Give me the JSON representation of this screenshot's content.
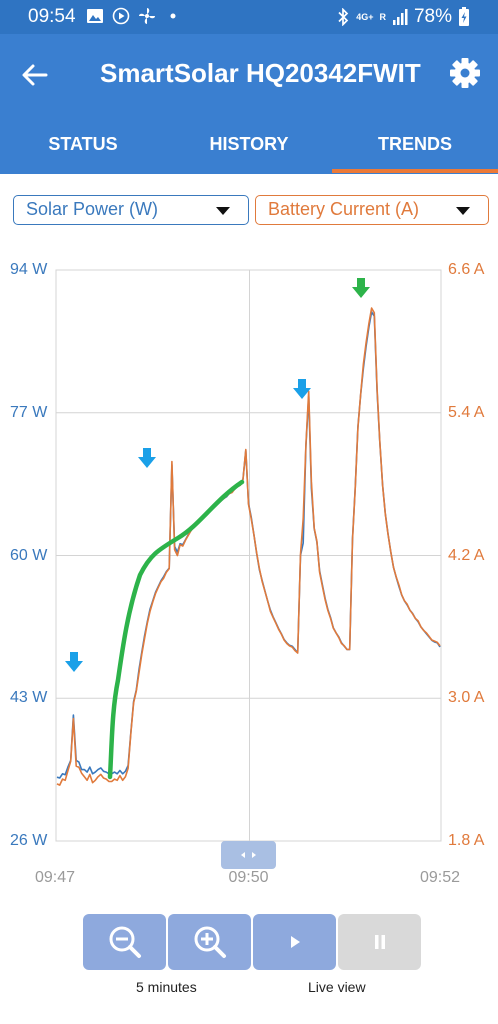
{
  "status_bar": {
    "time": "09:54",
    "battery_percent": "78%",
    "network_badge_top": "4G+",
    "network_badge_side": "R",
    "icons": [
      "gallery-icon",
      "play-circle-icon",
      "fan-icon",
      "dot-icon",
      "bluetooth-icon",
      "signal-icon",
      "battery-charging-icon"
    ]
  },
  "app_bar": {
    "title": "SmartSolar HQ20342FWIT",
    "icons": [
      "back-arrow-icon",
      "gear-icon"
    ]
  },
  "tabs": [
    {
      "label": "STATUS",
      "active": false
    },
    {
      "label": "HISTORY",
      "active": false
    },
    {
      "label": "TRENDS",
      "active": true
    }
  ],
  "selectors": {
    "left": {
      "value": "Solar Power (W)",
      "color": "#3a79bd"
    },
    "right": {
      "value": "Battery Current (A)",
      "color": "#e07a3c"
    }
  },
  "controls": {
    "zoom_label": "5 minutes",
    "live_label": "Live view",
    "buttons": [
      "zoom-out-icon",
      "zoom-in-icon",
      "play-icon",
      "pause-icon"
    ]
  },
  "colors": {
    "accent_blue": "#3a7fd0",
    "tab_indicator": "#ec7a38",
    "annotation_green": "#2db34a",
    "annotation_blue_arrow": "#1aa0e8"
  },
  "chart_data": {
    "type": "line",
    "y_left": {
      "ticks": [
        "94 W",
        "77 W",
        "60 W",
        "43 W",
        "26 W"
      ],
      "ylim": [
        26,
        94
      ],
      "unit": "W"
    },
    "y_right": {
      "ticks": [
        "6.6 A",
        "5.4 A",
        "4.2 A",
        "3.0 A",
        "1.8 A"
      ],
      "ylim": [
        1.8,
        6.6
      ],
      "unit": "A"
    },
    "x_ticks": [
      "09:47",
      "09:50",
      "09:52"
    ],
    "grid": true,
    "series": [
      {
        "name": "Solar Power (W)",
        "color": "#3a79bd",
        "axis": "left",
        "values": [
          33.6,
          33.5,
          34.0,
          33.9,
          34.8,
          35.6,
          41.0,
          35.6,
          35.4,
          34.5,
          34.5,
          34.2,
          34.8,
          34.0,
          34.2,
          34.5,
          34.7,
          34.3,
          34.2,
          34.0,
          34.0,
          34.2,
          34.0,
          34.4,
          34.0,
          34.3,
          35.0,
          39.0,
          42.6,
          44.0,
          46.5,
          48.5,
          50.4,
          52.1,
          53.6,
          54.6,
          55.6,
          56.3,
          57.0,
          57.5,
          58.1,
          58.5,
          70.8,
          61.1,
          60.4,
          61.4,
          61.3,
          61.9,
          62.5,
          63.0,
          63.4,
          63.7,
          64.1,
          64.4,
          64.6,
          64.9,
          65.3,
          65.6,
          65.9,
          66.2,
          66.5,
          66.8,
          67.0,
          67.4,
          67.6,
          67.9,
          68.2,
          68.4,
          69.1,
          72.5,
          66.2,
          64.6,
          62.4,
          60.2,
          58.3,
          57.0,
          55.8,
          54.6,
          53.5,
          52.7,
          52.0,
          51.3,
          50.7,
          50.0,
          49.6,
          49.3,
          49.2,
          48.8,
          48.4,
          60.0,
          61.5,
          73.0,
          79.0,
          68.0,
          63.2,
          61.6,
          58.2,
          56.5,
          54.9,
          53.6,
          52.6,
          51.4,
          50.8,
          50.3,
          49.6,
          49.2,
          48.8,
          48.8,
          62.0,
          68.0,
          75.3,
          79.2,
          82.3,
          84.9,
          87.2,
          89.0,
          88.5,
          79.5,
          73.5,
          68.4,
          65.0,
          62.6,
          60.4,
          58.6,
          57.4,
          56.3,
          55.3,
          54.6,
          54.1,
          53.5,
          53.1,
          52.5,
          52.1,
          51.5,
          51.1,
          50.7,
          50.3,
          49.9,
          49.7,
          49.6,
          49.1
        ]
      },
      {
        "name": "Battery Current (A)",
        "color": "#e07a3c",
        "axis": "right",
        "values": [
          2.28,
          2.27,
          2.32,
          2.31,
          2.39,
          2.47,
          2.83,
          2.43,
          2.42,
          2.37,
          2.34,
          2.31,
          2.36,
          2.29,
          2.31,
          2.34,
          2.36,
          2.33,
          2.32,
          2.3,
          2.3,
          2.32,
          2.31,
          2.35,
          2.31,
          2.34,
          2.41,
          2.71,
          2.96,
          3.06,
          3.22,
          3.37,
          3.5,
          3.63,
          3.73,
          3.81,
          3.88,
          3.93,
          3.98,
          4.01,
          4.06,
          4.09,
          4.99,
          4.25,
          4.2,
          4.29,
          4.28,
          4.33,
          4.37,
          4.41,
          4.44,
          4.46,
          4.49,
          4.51,
          4.53,
          4.55,
          4.58,
          4.6,
          4.62,
          4.64,
          4.66,
          4.68,
          4.7,
          4.72,
          4.73,
          4.76,
          4.78,
          4.79,
          4.84,
          5.09,
          4.63,
          4.51,
          4.37,
          4.22,
          4.09,
          3.98,
          3.9,
          3.82,
          3.73,
          3.68,
          3.63,
          3.58,
          3.54,
          3.49,
          3.46,
          3.44,
          3.43,
          3.4,
          3.38,
          4.21,
          4.51,
          5.13,
          5.58,
          4.82,
          4.43,
          4.32,
          4.06,
          3.94,
          3.83,
          3.74,
          3.67,
          3.59,
          3.55,
          3.51,
          3.46,
          3.44,
          3.41,
          3.41,
          4.33,
          4.76,
          5.27,
          5.56,
          5.81,
          5.99,
          6.15,
          6.28,
          6.24,
          5.6,
          5.16,
          4.79,
          4.55,
          4.38,
          4.23,
          4.1,
          4.02,
          3.95,
          3.87,
          3.82,
          3.79,
          3.74,
          3.71,
          3.67,
          3.65,
          3.6,
          3.57,
          3.55,
          3.52,
          3.49,
          3.48,
          3.47,
          3.44
        ]
      }
    ]
  }
}
